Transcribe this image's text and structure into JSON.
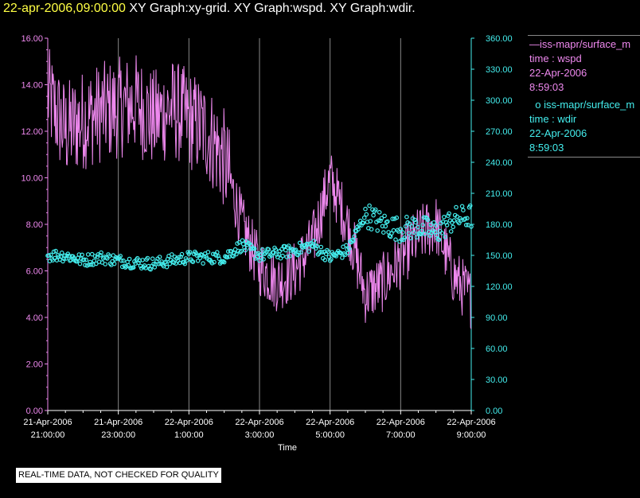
{
  "header": {
    "date": "22-apr-2006,09:00:00",
    "graph1": "XY Graph:xy-grid.",
    "graph2": "XY Graph:wspd.",
    "graph3": "XY Graph:wdir."
  },
  "legend": {
    "wspd": {
      "line1": "iss-mapr/surface_m",
      "line2": "time : wspd",
      "line3": "22-Apr-2006",
      "line4": "8:59:03"
    },
    "wdir": {
      "line1": "iss-mapr/surface_m",
      "line2": "time : wdir",
      "line3": "22-Apr-2006",
      "line4": "8:59:03"
    }
  },
  "footer": {
    "text": "REAL-TIME DATA, NOT CHECKED FOR QUALITY"
  },
  "colors": {
    "wspd": "#ee88ee",
    "wdir": "#44eeee",
    "grid": "#888888",
    "background": "#000000"
  },
  "chart_data": {
    "type": "line",
    "xlabel": "Time",
    "x_range_hours": [
      "21-Apr-2006 21:00:00",
      "22-Apr-2006 9:00:00"
    ],
    "x_ticks": [
      {
        "date": "21-Apr-2006",
        "time": "21:00:00"
      },
      {
        "date": "21-Apr-2006",
        "time": "23:00:00"
      },
      {
        "date": "22-Apr-2006",
        "time": "1:00:00"
      },
      {
        "date": "22-Apr-2006",
        "time": "3:00:00"
      },
      {
        "date": "22-Apr-2006",
        "time": "5:00:00"
      },
      {
        "date": "22-Apr-2006",
        "time": "7:00:00"
      },
      {
        "date": "22-Apr-2006",
        "time": "9:00:00"
      }
    ],
    "y_left": {
      "ylim": [
        0,
        16
      ],
      "ticks": [
        "0.00",
        "2.00",
        "4.00",
        "6.00",
        "8.00",
        "10.00",
        "12.00",
        "14.00",
        "16.00"
      ]
    },
    "y_right": {
      "ylim": [
        0,
        360
      ],
      "ticks": [
        "0.00",
        "30.00",
        "60.00",
        "90.00",
        "120.00",
        "150.00",
        "180.00",
        "210.00",
        "240.00",
        "270.00",
        "300.00",
        "330.00",
        "360.00"
      ]
    },
    "grid": "vertical",
    "series": [
      {
        "name": "iss-mapr/surface_m time : wspd",
        "axis": "left",
        "style": "line",
        "x_times": [
          "21-Apr-2006 21:00",
          "21-Apr-2006 21:30",
          "21-Apr-2006 22:00",
          "21-Apr-2006 22:30",
          "21-Apr-2006 23:00",
          "21-Apr-2006 23:30",
          "22-Apr-2006 0:00",
          "22-Apr-2006 0:30",
          "22-Apr-2006 1:00",
          "22-Apr-2006 1:30",
          "22-Apr-2006 2:00",
          "22-Apr-2006 2:30",
          "22-Apr-2006 3:00",
          "22-Apr-2006 3:30",
          "22-Apr-2006 4:00",
          "22-Apr-2006 4:30",
          "22-Apr-2006 5:00",
          "22-Apr-2006 5:30",
          "22-Apr-2006 6:00",
          "22-Apr-2006 6:30",
          "22-Apr-2006 7:00",
          "22-Apr-2006 7:30",
          "22-Apr-2006 8:00",
          "22-Apr-2006 8:30",
          "22-Apr-2006 9:00"
        ],
        "values": [
          13.5,
          12.0,
          12.5,
          12.8,
          13.0,
          13.2,
          12.5,
          13.0,
          12.5,
          12.0,
          10.8,
          8.0,
          6.2,
          5.5,
          6.0,
          7.2,
          10.0,
          8.0,
          5.0,
          5.5,
          6.5,
          7.5,
          8.0,
          5.8,
          4.8
        ]
      },
      {
        "name": "iss-mapr/surface_m time : wdir",
        "axis": "right",
        "style": "scatter",
        "x_times": [
          "21-Apr-2006 21:00",
          "21-Apr-2006 21:30",
          "21-Apr-2006 22:00",
          "21-Apr-2006 22:30",
          "21-Apr-2006 23:00",
          "21-Apr-2006 23:30",
          "22-Apr-2006 0:00",
          "22-Apr-2006 0:30",
          "22-Apr-2006 1:00",
          "22-Apr-2006 1:30",
          "22-Apr-2006 2:00",
          "22-Apr-2006 2:30",
          "22-Apr-2006 3:00",
          "22-Apr-2006 3:30",
          "22-Apr-2006 4:00",
          "22-Apr-2006 4:30",
          "22-Apr-2006 5:00",
          "22-Apr-2006 5:30",
          "22-Apr-2006 6:00",
          "22-Apr-2006 6:30",
          "22-Apr-2006 7:00",
          "22-Apr-2006 7:30",
          "22-Apr-2006 8:00",
          "22-Apr-2006 8:30",
          "22-Apr-2006 9:00"
        ],
        "values": [
          150,
          150,
          145,
          148,
          145,
          143,
          142,
          145,
          148,
          148,
          148,
          160,
          150,
          152,
          155,
          160,
          148,
          155,
          190,
          180,
          175,
          178,
          172,
          185,
          188
        ]
      }
    ]
  }
}
